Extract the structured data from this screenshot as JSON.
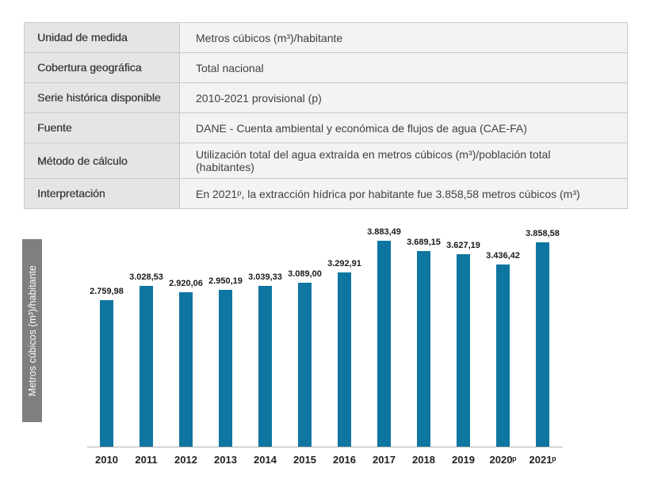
{
  "table": {
    "rows": [
      {
        "label": "Unidad de medida",
        "value": "Metros cúbicos (m³)/habitante"
      },
      {
        "label": "Cobertura geográfica",
        "value": "Total nacional"
      },
      {
        "label": "Serie histórica disponible",
        "value": "2010-2021 provisional (p)"
      },
      {
        "label": "Fuente",
        "value": "DANE - Cuenta ambiental y económica de flujos de agua (CAE-FA)"
      },
      {
        "label": "Método de cálculo",
        "value": "Utilización total del agua extraída en metros cúbicos (m³)/población total\n(habitantes)"
      },
      {
        "label": "Interpretación",
        "value": "En 2021ᵖ, la extracción hídrica por habitante fue 3.858,58 metros cúbicos (m³)"
      }
    ]
  },
  "chart_data": {
    "type": "bar",
    "categories": [
      "2010",
      "2011",
      "2012",
      "2013",
      "2014",
      "2015",
      "2016",
      "2017",
      "2018",
      "2019",
      "2020ᵖ",
      "2021ᵖ"
    ],
    "values": [
      2759.98,
      3028.53,
      2920.06,
      2950.19,
      3039.33,
      3089.0,
      3292.91,
      3883.49,
      3689.15,
      3627.19,
      3436.42,
      3858.58
    ],
    "value_labels": [
      "2.759,98",
      "3.028,53",
      "2.920,06",
      "2.950,19",
      "3.039,33",
      "3.089,00",
      "3.292,91",
      "3.883,49",
      "3.689,15",
      "3.627,19",
      "3.436,42",
      "3.858,58"
    ],
    "title": "",
    "xlabel": "",
    "ylabel": "Metros cúbicos (m³)/habitante",
    "ylim": [
      0,
      3883.49
    ],
    "bar_color": "#0e76a0",
    "legend": false,
    "grid": false
  }
}
